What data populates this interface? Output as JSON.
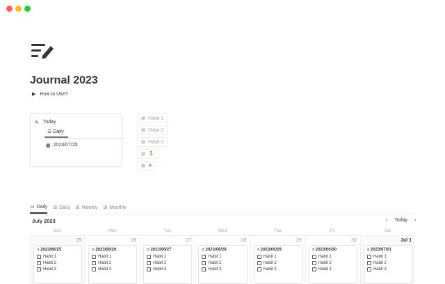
{
  "window": {
    "colors": {
      "close": "#fe5f57",
      "min": "#febc2e",
      "max": "#28c840"
    }
  },
  "page": {
    "icon": "journal-edit-icon",
    "title": "Journal 2023",
    "toggle_label": "How to Use?"
  },
  "today_card": {
    "title": "Today",
    "view_tab": "Daily",
    "entry": "2023/07/25"
  },
  "habits": [
    "Habit 1",
    "Habit 2",
    "Habit 3",
    "🏃",
    "⛰"
  ],
  "tabs": [
    {
      "label": "Daily",
      "icon": "calendar-icon"
    },
    {
      "label": "Daily",
      "icon": "gallery-icon"
    },
    {
      "label": "Weekly",
      "icon": "gallery-icon"
    },
    {
      "label": "Monthly",
      "icon": "gallery-icon"
    }
  ],
  "calendar": {
    "month": "July 2023",
    "today_button": "Today",
    "weekdays": [
      "Sun",
      "Mon",
      "Tue",
      "Wed",
      "Thu",
      "Fri",
      "Sat"
    ],
    "days": [
      {
        "num": "25",
        "entry": "2023/06/25"
      },
      {
        "num": "26",
        "entry": "2023/06/26"
      },
      {
        "num": "27",
        "entry": "2023/06/27"
      },
      {
        "num": "28",
        "entry": "2023/06/28"
      },
      {
        "num": "29",
        "entry": "2023/06/29"
      },
      {
        "num": "30",
        "entry": "2023/06/30"
      },
      {
        "num": "Jul 1",
        "entry": "2023/07/01"
      }
    ],
    "entry_items": [
      "Habit 1",
      "Habit 2",
      "Habit 3"
    ]
  }
}
